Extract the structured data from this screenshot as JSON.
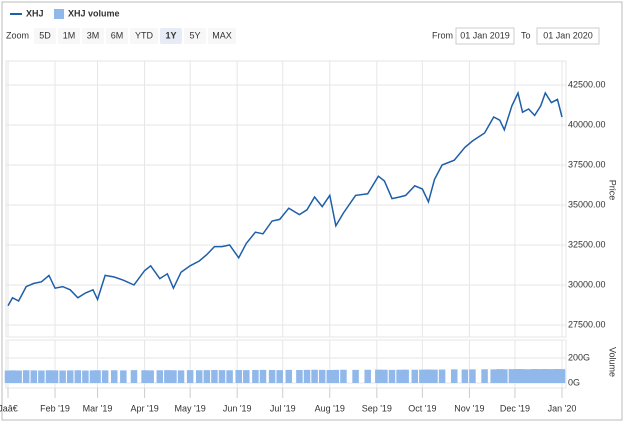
{
  "chart_data": {
    "type": "line",
    "legend": [
      "XHJ",
      "XHJ volume"
    ],
    "range_selector": {
      "label": "Zoom",
      "buttons": [
        "5D",
        "1M",
        "3M",
        "6M",
        "YTD",
        "1Y",
        "5Y",
        "MAX"
      ],
      "selected": 5,
      "from_label": "From",
      "from": "01 Jan 2019",
      "to_label": "To",
      "to": "01 Jan 2020"
    },
    "y_label": "Price",
    "y2_label": "Volume",
    "x": [
      0,
      3,
      7,
      12,
      17,
      22,
      27,
      31,
      36,
      41,
      46,
      51,
      56,
      59,
      64,
      70,
      76,
      83,
      90,
      94,
      100,
      105,
      109,
      114,
      120,
      126,
      131,
      136,
      141,
      146,
      152,
      157,
      163,
      168,
      174,
      179,
      185,
      192,
      197,
      202,
      207,
      212,
      216,
      221,
      229,
      237,
      244,
      248,
      253,
      258,
      262,
      268,
      273,
      277,
      281,
      286,
      294,
      301,
      306,
      314,
      320,
      324,
      327,
      332,
      336,
      339,
      343,
      347,
      351,
      354,
      358,
      362,
      365
    ],
    "series": [
      {
        "name": "XHJ",
        "color": "#1f5fa8",
        "type": "line",
        "values": [
          28700,
          29200,
          29000,
          29900,
          30100,
          30200,
          30600,
          29800,
          29900,
          29700,
          29200,
          29500,
          29700,
          29100,
          30600,
          30500,
          30300,
          30000,
          30900,
          31200,
          30400,
          30700,
          29800,
          30800,
          31200,
          31500,
          31900,
          32400,
          32400,
          32500,
          31700,
          32600,
          33300,
          33200,
          34000,
          34100,
          34800,
          34400,
          34700,
          35500,
          34900,
          35600,
          33700,
          34500,
          35600,
          35700,
          36800,
          36500,
          35400,
          35500,
          35600,
          36200,
          36000,
          35200,
          36600,
          37500,
          37800,
          38600,
          39000,
          39500,
          40500,
          40300,
          39700,
          41200,
          42000,
          40800,
          41000,
          40600,
          41200,
          42000,
          41400,
          41600,
          40500
        ]
      },
      {
        "name": "XHJ volume",
        "color": "#90b8ea",
        "type": "bar",
        "axis": "y2",
        "values": [
          100,
          101,
          100,
          102,
          101,
          100,
          102,
          101,
          100,
          101,
          102,
          100,
          101,
          102,
          101,
          102,
          101,
          103,
          102,
          101,
          102,
          103,
          102,
          101,
          103,
          102,
          103,
          104,
          103,
          102,
          104,
          103,
          104,
          105,
          104,
          103,
          105,
          104,
          105,
          106,
          105,
          104,
          105,
          106,
          105,
          106,
          107,
          106,
          105,
          106,
          107,
          106,
          107,
          108,
          107,
          108,
          109,
          108,
          109,
          110,
          109,
          111,
          110,
          111,
          112,
          111,
          110,
          112,
          111,
          112,
          111,
          112,
          111
        ]
      }
    ],
    "xlim": [
      0,
      367
    ],
    "xticks": [
      {
        "value": 0,
        "label": "Jaâ€"
      },
      {
        "value": 31,
        "label": "Feb '19"
      },
      {
        "value": 59,
        "label": "Mar '19"
      },
      {
        "value": 90,
        "label": "Apr '19"
      },
      {
        "value": 120,
        "label": "May '19"
      },
      {
        "value": 151,
        "label": "Jun '19"
      },
      {
        "value": 181,
        "label": "Jul '19"
      },
      {
        "value": 212,
        "label": "Aug '19"
      },
      {
        "value": 243,
        "label": "Sep '19"
      },
      {
        "value": 273,
        "label": "Oct '19"
      },
      {
        "value": 304,
        "label": "Nov '19"
      },
      {
        "value": 334,
        "label": "Dec '19"
      },
      {
        "value": 365,
        "label": "Jan '20"
      }
    ],
    "ylim": [
      26750,
      44000
    ],
    "yticks": [
      {
        "value": 27500,
        "label": "27500.00"
      },
      {
        "value": 30000,
        "label": "30000.00"
      },
      {
        "value": 32500,
        "label": "32500.00"
      },
      {
        "value": 35000,
        "label": "35000.00"
      },
      {
        "value": 37500,
        "label": "37500.00"
      },
      {
        "value": 40000,
        "label": "40000.00"
      },
      {
        "value": 42500,
        "label": "42500.00"
      }
    ],
    "y2lim": [
      0,
      320
    ],
    "y2ticks": [
      {
        "value": 0,
        "label": "0G"
      },
      {
        "value": 200,
        "label": "200G"
      }
    ],
    "grid": true
  }
}
